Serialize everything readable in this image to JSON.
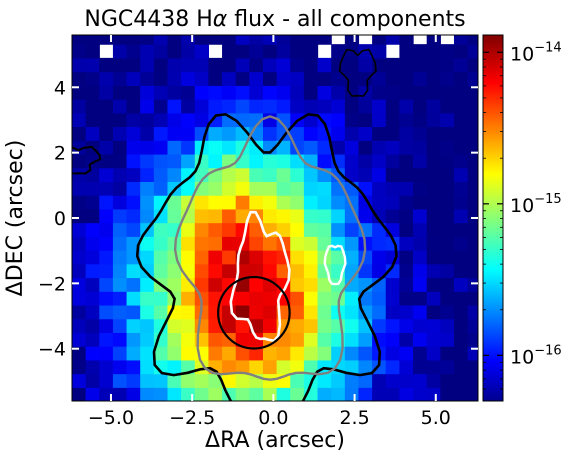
{
  "chart_data": {
    "type": "heatmap",
    "title_html_parts": [
      "NGC4438 H",
      "α",
      " flux - all components"
    ],
    "xlabel_parts": [
      "Δ",
      "RA (arcsec)"
    ],
    "ylabel_parts": [
      "Δ",
      "DEC (arcsec)"
    ],
    "xlim": [
      -6.2,
      6.3
    ],
    "ylim": [
      -5.6,
      5.6
    ],
    "xticks": [
      -5.0,
      -2.5,
      0.0,
      2.5,
      5.0
    ],
    "xtick_labels": [
      "−5.0",
      "−2.5",
      "0.0",
      "2.5",
      "5.0"
    ],
    "yticks": [
      -4,
      -2,
      0,
      2,
      4
    ],
    "ytick_labels": [
      "−4",
      "−2",
      "0",
      "2",
      "4"
    ],
    "colorbar": {
      "scale": "log",
      "range": [
        5e-17,
        1.3e-14
      ],
      "ticks": [
        1e-14,
        1e-15,
        1e-16
      ],
      "tick_labels": [
        "10^-14",
        "10^-15",
        "10^-16"
      ],
      "colormap": "jet"
    },
    "peak": {
      "x": -0.8,
      "y": -2.6,
      "value": 1.2e-14
    },
    "circle": {
      "x": -0.6,
      "y": -2.9,
      "radius": 1.1
    },
    "contour_colors": {
      "black": "#000000",
      "gray": "#808080",
      "white": "#ffffff"
    }
  }
}
